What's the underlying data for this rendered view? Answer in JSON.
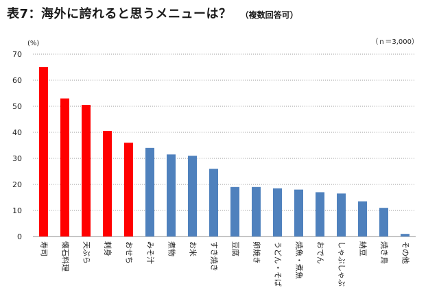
{
  "header": {
    "title": "表7：海外に誇れると思うメニューは？",
    "subtitle": "（複数回答可）",
    "unit": "(%)",
    "note": "（ｎ＝3,000）"
  },
  "chart_data": {
    "type": "bar",
    "title": "表7：海外に誇れると思うメニューは？",
    "subtitle": "（複数回答可）",
    "ylabel": "(%)",
    "ylim": [
      0,
      70
    ],
    "yticks": [
      0,
      10,
      20,
      30,
      40,
      50,
      60,
      70
    ],
    "grid": true,
    "categories": [
      "寿司",
      "懐石料理",
      "天ぷら",
      "刺身",
      "おせち",
      "みそ汁",
      "煮物",
      "お米",
      "すき焼き",
      "豆腐",
      "卵焼き",
      "うどん・そば",
      "焼魚・煮魚",
      "おでん",
      "しゃぶしゃぶ",
      "納豆",
      "焼き鳥",
      "その他"
    ],
    "values": [
      65,
      53,
      50.5,
      40.5,
      36,
      34,
      31.5,
      31,
      26,
      19,
      19,
      18.5,
      18,
      17,
      16.5,
      13.5,
      11,
      1
    ],
    "highlight_count": 5,
    "colors": {
      "highlight": "#ff0000",
      "normal": "#4f81bd"
    }
  }
}
